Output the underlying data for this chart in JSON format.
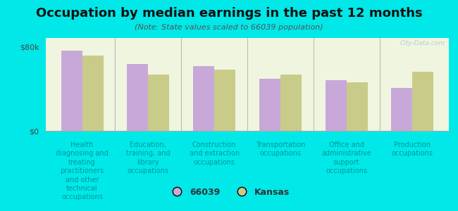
{
  "title": "Occupation by median earnings in the past 12 months",
  "subtitle": "(Note: State values scaled to 66039 population)",
  "background_outer": "#00e8e8",
  "background_plot_top": "#e8edd8",
  "background_plot_bottom": "#f0f5e0",
  "categories": [
    "Health\ndiagnosing and\ntreating\npractitioners\nand other\ntechnical\noccupations",
    "Education,\ntraining, and\nlibrary\noccupations",
    "Construction\nand extraction\noccupations",
    "Transportation\noccupations",
    "Office and\nadministrative\nsupport\noccupations",
    "Production\noccupations"
  ],
  "cat_labels": [
    "Health\ndiagnosing and\ntreating\npractitioners\nand other\ntechnical\noccupations",
    "Education,\ntraining, and\nlibrary\noccupations",
    "Construction\nand extraction\noccupations",
    "Transportation\noccupations",
    "Office and\nadministrative\nsupport\noccupations",
    "Production\noccupations"
  ],
  "values_66039": [
    76000,
    63000,
    61000,
    49000,
    48000,
    41000
  ],
  "values_kansas": [
    71000,
    53000,
    58000,
    53000,
    46000,
    56000
  ],
  "color_66039": "#c8a8d8",
  "color_kansas": "#c8cc88",
  "ylim": [
    0,
    88000
  ],
  "ytick_vals": [
    0,
    80000
  ],
  "ytick_labels": [
    "$0",
    "$80k"
  ],
  "legend_66039": "66039",
  "legend_kansas": "Kansas",
  "bar_width": 0.32,
  "xlabel_color": "#009999",
  "xlabel_fontsize": 7.0,
  "title_fontsize": 13,
  "subtitle_fontsize": 8.0
}
